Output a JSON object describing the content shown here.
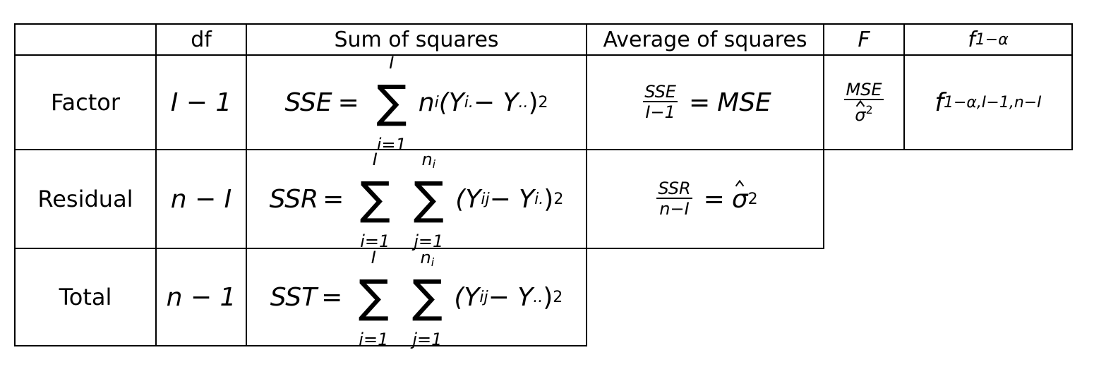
{
  "header": {
    "col_blank": "",
    "df": "df",
    "sum_of_squares": "Sum of squares",
    "average_of_squares": "Average of squares",
    "F": "F",
    "f_crit": "f",
    "f_crit_sub": "1−α"
  },
  "rows": [
    {
      "label": "Factor",
      "df": "I − 1",
      "ss_lhs": "SSE",
      "ss_sum_upper": "I",
      "ss_sum_lower": "i=1",
      "ss_body": "n",
      "ss_body_sub": "i",
      "ss_paren": "(Y",
      "ss_y1_sub": "i.",
      "ss_minus": " − Y",
      "ss_y2_sub": "..",
      "ss_close": ")",
      "ss_sup": "2",
      "avg_num": "SSE",
      "avg_den": "I−1",
      "avg_rhs": "MSE",
      "F_num": "MSE",
      "F_den": "σ",
      "F_den_sup": "2",
      "fcrit_main": "f",
      "fcrit_sub": "1−α,I−1,n−I"
    },
    {
      "label": "Residual",
      "df": "n − I",
      "ss_lhs": "SSR",
      "ss_sum1_upper": "I",
      "ss_sum1_lower": "i=1",
      "ss_sum2_upper": "n",
      "ss_sum2_upper_sub": "i",
      "ss_sum2_lower": "j=1",
      "ss_paren": "(Y",
      "ss_y1_sub": "ij",
      "ss_minus": " − Y",
      "ss_y2_sub": "i.",
      "ss_close": ")",
      "ss_sup": "2",
      "avg_num": "SSR",
      "avg_den": "n−I",
      "avg_rhs": "σ",
      "avg_rhs_sup": "2"
    },
    {
      "label": "Total",
      "df": "n − 1",
      "ss_lhs": "SST",
      "ss_sum1_upper": "I",
      "ss_sum1_lower": "i=1",
      "ss_sum2_upper": "n",
      "ss_sum2_upper_sub": "i",
      "ss_sum2_lower": "j=1",
      "ss_paren": "(Y",
      "ss_y1_sub": "ij",
      "ss_minus": " − Y",
      "ss_y2_sub": "..",
      "ss_close": ")",
      "ss_sup": "2"
    }
  ]
}
